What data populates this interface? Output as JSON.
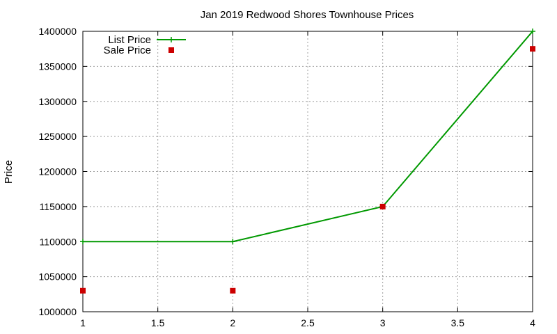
{
  "chart_data": {
    "type": "line",
    "title": "Jan 2019 Redwood Shores Townhouse Prices",
    "xlabel": "",
    "ylabel": "Price",
    "xlim": [
      1,
      4
    ],
    "ylim": [
      1000000,
      1400000
    ],
    "x_ticks": [
      1,
      1.5,
      2,
      2.5,
      3,
      3.5,
      4
    ],
    "y_ticks": [
      1000000,
      1050000,
      1100000,
      1150000,
      1200000,
      1250000,
      1300000,
      1350000,
      1400000
    ],
    "grid": true,
    "legend_position": "top-left",
    "series": [
      {
        "name": "List Price",
        "kind": "line-with-plus-markers",
        "color": "#009900",
        "x": [
          1,
          2,
          3,
          4
        ],
        "y": [
          1100000,
          1100000,
          1150000,
          1400000
        ]
      },
      {
        "name": "Sale Price",
        "kind": "square-markers",
        "color": "#cc0000",
        "x": [
          1,
          2,
          3,
          4
        ],
        "y": [
          1030000,
          1030000,
          1150000,
          1375000
        ]
      }
    ]
  }
}
